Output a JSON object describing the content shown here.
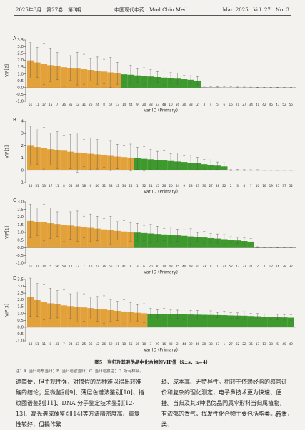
{
  "header": {
    "left": "2025年3月　第27卷　第3期",
    "center": "中国现代中药　Mod Chin Med",
    "right": "Mar. 2025　Vol. 27　No. 3"
  },
  "chart_data": [
    {
      "type": "bar",
      "label": "A",
      "ylabel": "VIP[2]",
      "xlabel": "Var ID (Primary)",
      "ylim": [
        -1,
        3.5
      ],
      "yticks": [
        {
          "value": -1,
          "label": "-1.0"
        },
        -0.5,
        {
          "value": 0,
          "label": "0.0"
        },
        0.5,
        {
          "value": 1,
          "label": "1.0"
        },
        1.5,
        {
          "value": 2,
          "label": "2.0"
        },
        2.5,
        {
          "value": 3,
          "label": "3.0"
        },
        3.5
      ],
      "series": [
        {
          "color": "#e3a13a",
          "categories": [
            "51",
            "11",
            "17",
            "15",
            "7",
            "36",
            "35",
            "12",
            "31",
            "26",
            "24",
            "8",
            "57",
            "13"
          ],
          "values": [
            2.0,
            1.85,
            1.72,
            1.65,
            1.58,
            1.5,
            1.45,
            1.4,
            1.35,
            1.3,
            1.25,
            1.18,
            1.12,
            1.05
          ],
          "errors": [
            1.3,
            1.1,
            1.5,
            1.2,
            1.0,
            1.4,
            0.9,
            1.2,
            1.1,
            0.8,
            1.0,
            0.9,
            1.1,
            0.8
          ]
        },
        {
          "color": "#3f9a2e",
          "categories": [
            "14",
            "44",
            "9",
            "20",
            "38",
            "53",
            "48",
            "10",
            "56",
            "30",
            "33",
            "2"
          ],
          "values": [
            0.98,
            0.95,
            0.9,
            0.86,
            0.82,
            0.78,
            0.74,
            0.7,
            0.66,
            0.62,
            0.58,
            0.52
          ],
          "errors": [
            0.6,
            0.7,
            0.5,
            0.6,
            0.5,
            0.4,
            0.5,
            0.4,
            0.4,
            0.3,
            0.3,
            0.3
          ]
        },
        {
          "color": "#9a9a9a",
          "categories": [
            "3",
            "4",
            "5",
            "6",
            "16",
            "21",
            "27",
            "34",
            "41",
            "42",
            "45",
            "47",
            "52",
            "55"
          ],
          "values": [
            0.04,
            0.03,
            0.03,
            0.02,
            0.02,
            0.02,
            0.02,
            0.01,
            0.01,
            0.01,
            0.01,
            0.01,
            0.01,
            0.01
          ],
          "errors": [
            0.06,
            0.05,
            0.05,
            0.04,
            0.04,
            0.03,
            0.03,
            0.03,
            0.02,
            0.02,
            0.02,
            0.02,
            0.02,
            0.02
          ]
        }
      ]
    },
    {
      "type": "bar",
      "label": "B",
      "ylabel": "VIP[1]",
      "xlabel": "Var ID (Primary)",
      "ylim": [
        -1,
        4
      ],
      "yticks": [
        -1,
        0,
        1,
        2,
        3,
        4
      ],
      "series": [
        {
          "color": "#e3a13a",
          "categories": [
            "14",
            "51",
            "13",
            "17",
            "11",
            "8",
            "55",
            "58",
            "18",
            "6",
            "46",
            "31",
            "33",
            "12",
            "34",
            "24"
          ],
          "values": [
            2.0,
            1.9,
            1.8,
            1.72,
            1.65,
            1.6,
            1.52,
            1.45,
            1.4,
            1.35,
            1.3,
            1.24,
            1.18,
            1.12,
            1.08,
            1.04
          ],
          "errors": [
            1.6,
            1.4,
            1.7,
            1.3,
            1.5,
            1.2,
            1.4,
            1.6,
            1.1,
            1.3,
            1.2,
            1.0,
            1.2,
            1.0,
            0.9,
            1.1
          ]
        },
        {
          "color": "#3f9a2e",
          "categories": [
            "1",
            "32",
            "21",
            "15",
            "26",
            "20",
            "44",
            "9",
            "23",
            "53",
            "30",
            "27",
            "38",
            "22"
          ],
          "values": [
            0.98,
            0.94,
            0.9,
            0.85,
            0.8,
            0.76,
            0.72,
            0.68,
            0.62,
            0.57,
            0.5,
            0.45,
            0.38,
            0.32
          ],
          "errors": [
            0.9,
            1.0,
            0.8,
            0.7,
            0.8,
            0.6,
            0.7,
            0.5,
            0.6,
            0.5,
            0.4,
            0.4,
            0.3,
            0.3
          ]
        },
        {
          "color": "#9a9a9a",
          "categories": [
            "2",
            "3",
            "4",
            "7",
            "10",
            "16",
            "19",
            "25",
            "37",
            "52"
          ],
          "values": [
            0.03,
            0.03,
            0.02,
            0.02,
            0.02,
            0.01,
            0.01,
            0.01,
            0.01,
            0.01
          ],
          "errors": [
            0.05,
            0.04,
            0.04,
            0.03,
            0.03,
            0.02,
            0.02,
            0.02,
            0.02,
            0.02
          ]
        }
      ]
    },
    {
      "type": "bar",
      "label": "C",
      "ylabel": "VIP[1]",
      "xlabel": "Var ID (Primary)",
      "ylim": [
        -1,
        3
      ],
      "yticks": [
        {
          "value": -1,
          "label": "-1.0"
        },
        -0.5,
        {
          "value": 0,
          "label": "0.0"
        },
        0.5,
        {
          "value": 1,
          "label": "1.0"
        },
        1.5,
        {
          "value": 2,
          "label": "2.0"
        },
        2.5,
        {
          "value": 3,
          "label": "3.0"
        }
      ],
      "series": [
        {
          "color": "#e3a13a",
          "categories": [
            "51",
            "31",
            "24",
            "5",
            "56",
            "58",
            "17",
            "13",
            "7",
            "10",
            "27",
            "36",
            "55",
            "11",
            "41",
            "8"
          ],
          "values": [
            1.75,
            1.7,
            1.65,
            1.6,
            1.55,
            1.5,
            1.45,
            1.4,
            1.36,
            1.3,
            1.25,
            1.2,
            1.15,
            1.1,
            1.06,
            1.02
          ],
          "errors": [
            1.1,
            0.9,
            1.2,
            1.0,
            0.8,
            1.1,
            0.9,
            1.0,
            0.7,
            0.9,
            0.8,
            0.7,
            0.9,
            0.6,
            0.7,
            0.6
          ]
        },
        {
          "color": "#3f9a2e",
          "categories": [
            "3",
            "6",
            "20",
            "30",
            "14",
            "43",
            "45",
            "40",
            "48",
            "50",
            "23",
            "9",
            "1",
            "22",
            "52",
            "47",
            "32",
            "21"
          ],
          "values": [
            0.99,
            0.96,
            0.93,
            0.9,
            0.87,
            0.84,
            0.81,
            0.78,
            0.74,
            0.7,
            0.67,
            0.63,
            0.6,
            0.56,
            0.52,
            0.48,
            0.44,
            0.4
          ],
          "errors": [
            0.6,
            0.5,
            0.6,
            0.5,
            0.4,
            0.5,
            0.4,
            0.4,
            0.5,
            0.3,
            0.4,
            0.3,
            0.3,
            0.3,
            0.2,
            0.2,
            0.2,
            0.2
          ]
        },
        {
          "color": "#9a9a9a",
          "categories": [
            "2",
            "4",
            "12",
            "16",
            "28",
            "37"
          ],
          "values": [
            0.03,
            0.02,
            0.02,
            0.01,
            0.01,
            0.01
          ],
          "errors": [
            0.04,
            0.03,
            0.03,
            0.02,
            0.02,
            0.02
          ]
        }
      ]
    },
    {
      "type": "bar",
      "label": "D",
      "ylabel": "VIP[3]",
      "xlabel": "Var ID (Primary)",
      "ylim": [
        -1,
        3.5
      ],
      "yticks": [
        {
          "value": -1,
          "label": "-1.0"
        },
        -0.5,
        {
          "value": 0,
          "label": "0.0"
        },
        0.5,
        {
          "value": 1,
          "label": "1.0"
        },
        1.5,
        {
          "value": 2,
          "label": "2.0"
        },
        2.5,
        {
          "value": 3,
          "label": "3.0"
        },
        3.5
      ],
      "series": [
        {
          "color": "#e3a13a",
          "categories": [
            "14",
            "51",
            "11",
            "8",
            "41",
            "7",
            "24",
            "43",
            "25",
            "36",
            "12",
            "26",
            "59",
            "31",
            "18",
            "55",
            "56",
            "10"
          ],
          "values": [
            2.2,
            2.0,
            1.85,
            1.75,
            1.68,
            1.6,
            1.55,
            1.5,
            1.45,
            1.4,
            1.35,
            1.3,
            1.25,
            1.2,
            1.15,
            1.1,
            1.06,
            1.02
          ],
          "errors": [
            1.4,
            1.2,
            1.3,
            1.1,
            1.0,
            1.2,
            0.9,
            1.1,
            1.0,
            0.8,
            0.9,
            1.0,
            0.8,
            0.7,
            0.9,
            0.7,
            0.6,
            0.7
          ]
        },
        {
          "color": "#3f9a2e",
          "categories": [
            "3",
            "29",
            "16",
            "42",
            "2",
            "44",
            "39",
            "46",
            "20",
            "33",
            "37",
            "1",
            "27",
            "32",
            "22",
            "35",
            "17",
            "13",
            "38",
            "5",
            "40",
            "49"
          ],
          "values": [
            0.99,
            0.98,
            0.97,
            0.96,
            0.95,
            0.94,
            0.93,
            0.92,
            0.91,
            0.9,
            0.89,
            0.88,
            0.86,
            0.85,
            0.84,
            0.82,
            0.8,
            0.78,
            0.76,
            0.74,
            0.72,
            0.7
          ],
          "errors": [
            0.4,
            0.3,
            0.4,
            0.3,
            0.3,
            0.4,
            0.3,
            0.3,
            0.2,
            0.3,
            0.2,
            0.3,
            0.2,
            0.2,
            0.3,
            0.2,
            0.2,
            0.2,
            0.2,
            0.2,
            0.2,
            0.2
          ]
        }
      ]
    }
  ],
  "caption": "图5　当归及其混伪品中化合物的VIP值（x̄±s，n=4）",
  "note": "注：A. 当归与东当归；B. 当归与欧当归；C. 当归与独活；D. 所有样品。",
  "body": {
    "left": "速简便，但主观性强，对掺假的品种难以得出较准确的结论；显微鉴别[9]、薄层色谱法鉴别[10]、指纹图谱鉴别[11]、DNA 分子鉴定技术鉴别[12-13]、高光谱成像鉴别[14]等方法精密度高、重复性较好，但操作繁",
    "right": "琐、成本高、无特异性。相较于依赖经验的感官评价和复杂的理化测定，电子鼻技术更为快速、便捷。当归及其3种混伪品同属伞形科当归属植物，有浓郁的香气，挥发性化合物主要包括酯类、芳香类、"
  },
  "page_number": "· 457 ·"
}
